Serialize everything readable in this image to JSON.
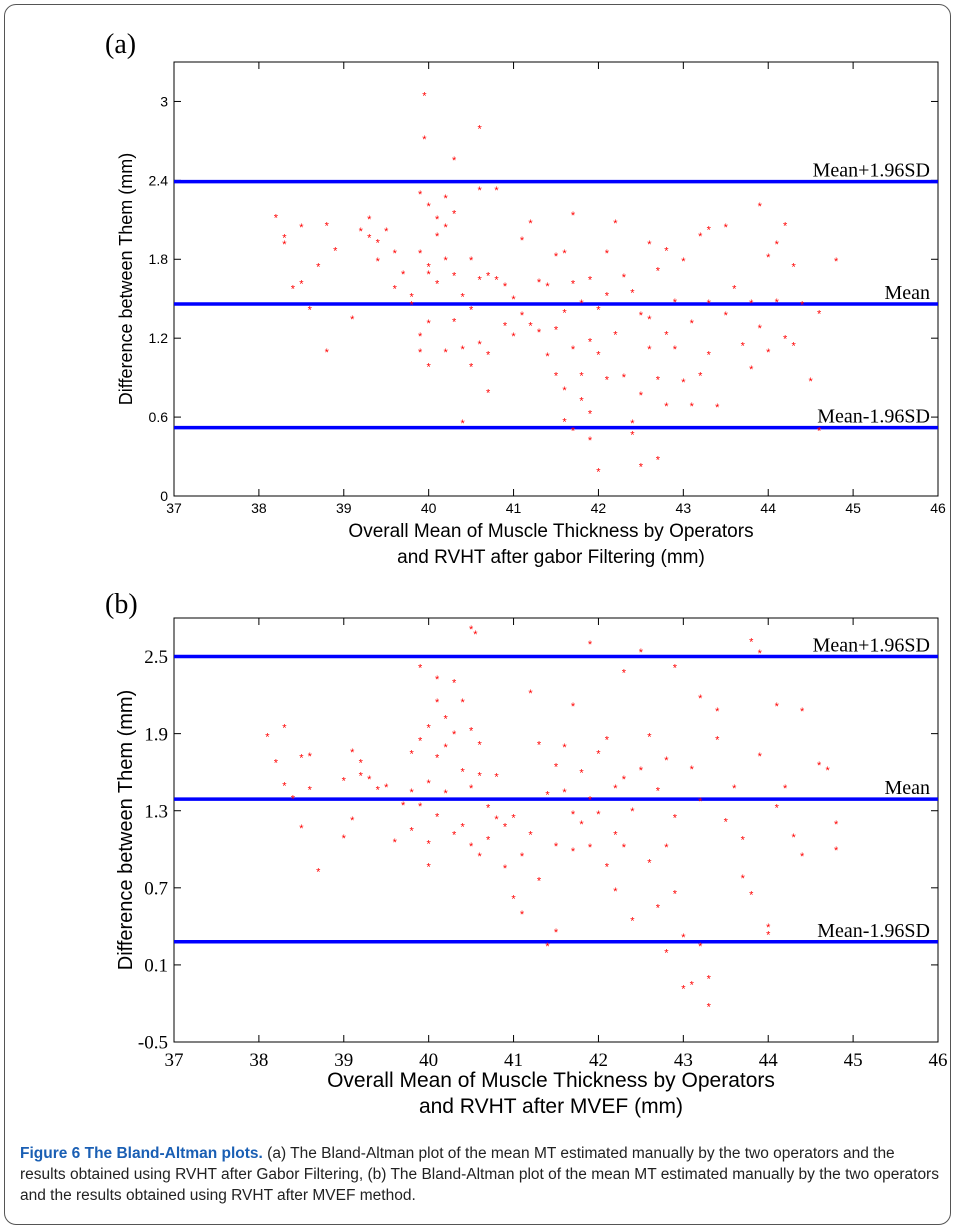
{
  "caption": {
    "label": "Figure 6 The Bland-Altman plots.",
    "text": "(a) The Bland-Altman plot of the mean MT estimated manually by the two operators and the results obtained using RVHT after Gabor Filtering, (b) The Bland-Altman plot of the mean MT estimated manually by the two operators and the results obtained using RVHT after MVEF method."
  },
  "chart_data": [
    {
      "type": "scatter",
      "panel_label": "(a)",
      "xlabel": [
        "Overall Mean of Muscle Thickness by  Operators",
        "and RVHT after gabor Filtering (mm)"
      ],
      "ylabel": "Difference between Them (mm)",
      "xlim": [
        37,
        46
      ],
      "ylim": [
        0,
        3.3
      ],
      "xticks": [
        37,
        38,
        39,
        40,
        41,
        42,
        43,
        44,
        45,
        46
      ],
      "yticks": [
        0,
        0.6,
        1.2,
        1.8,
        2.4,
        3
      ],
      "reference_lines": [
        {
          "name": "Mean+1.96SD",
          "y": 2.39
        },
        {
          "name": "Mean",
          "y": 1.46
        },
        {
          "name": "Mean-1.96SD",
          "y": 0.52
        }
      ],
      "marker_color": "#ff0000",
      "line_color": "#0000ff",
      "points": [
        [
          38.2,
          2.12
        ],
        [
          38.3,
          1.97
        ],
        [
          38.3,
          1.92
        ],
        [
          38.4,
          1.58
        ],
        [
          38.5,
          2.05
        ],
        [
          38.5,
          1.62
        ],
        [
          38.6,
          1.42
        ],
        [
          38.7,
          1.75
        ],
        [
          38.8,
          2.06
        ],
        [
          38.8,
          1.1
        ],
        [
          38.9,
          1.87
        ],
        [
          39.1,
          1.35
        ],
        [
          39.2,
          2.02
        ],
        [
          39.3,
          2.11
        ],
        [
          39.3,
          1.97
        ],
        [
          39.4,
          1.79
        ],
        [
          39.4,
          1.93
        ],
        [
          39.5,
          2.02
        ],
        [
          39.6,
          1.85
        ],
        [
          39.6,
          1.58
        ],
        [
          39.7,
          1.69
        ],
        [
          39.8,
          1.52
        ],
        [
          39.8,
          1.46
        ],
        [
          39.9,
          2.3
        ],
        [
          39.9,
          1.85
        ],
        [
          39.9,
          1.22
        ],
        [
          39.9,
          1.1
        ],
        [
          40.0,
          2.21
        ],
        [
          40.0,
          1.75
        ],
        [
          40.0,
          1.69
        ],
        [
          40.0,
          1.32
        ],
        [
          40.0,
          0.99
        ],
        [
          40.1,
          2.11
        ],
        [
          40.1,
          1.98
        ],
        [
          40.1,
          1.62
        ],
        [
          40.2,
          2.27
        ],
        [
          40.2,
          2.05
        ],
        [
          40.2,
          1.8
        ],
        [
          40.2,
          1.1
        ],
        [
          40.3,
          2.15
        ],
        [
          40.3,
          1.68
        ],
        [
          40.3,
          1.33
        ],
        [
          40.4,
          1.52
        ],
        [
          40.4,
          1.12
        ],
        [
          40.4,
          0.56
        ],
        [
          40.5,
          1.8
        ],
        [
          40.5,
          1.42
        ],
        [
          40.5,
          0.99
        ],
        [
          40.6,
          2.33
        ],
        [
          40.6,
          1.65
        ],
        [
          40.6,
          1.16
        ],
        [
          40.7,
          1.68
        ],
        [
          40.7,
          1.08
        ],
        [
          40.7,
          0.79
        ],
        [
          40.8,
          2.33
        ],
        [
          40.8,
          1.65
        ],
        [
          40.9,
          1.6
        ],
        [
          40.9,
          1.3
        ],
        [
          41.0,
          1.5
        ],
        [
          41.0,
          1.22
        ],
        [
          41.1,
          1.95
        ],
        [
          41.1,
          1.38
        ],
        [
          41.2,
          2.08
        ],
        [
          41.2,
          1.3
        ],
        [
          41.3,
          1.63
        ],
        [
          41.3,
          1.25
        ],
        [
          41.4,
          1.6
        ],
        [
          41.4,
          1.07
        ],
        [
          41.5,
          1.83
        ],
        [
          41.5,
          1.27
        ],
        [
          41.5,
          0.92
        ],
        [
          41.6,
          1.85
        ],
        [
          41.6,
          1.4
        ],
        [
          41.6,
          0.81
        ],
        [
          41.6,
          0.57
        ],
        [
          41.7,
          2.14
        ],
        [
          41.7,
          1.62
        ],
        [
          41.7,
          1.12
        ],
        [
          41.7,
          0.5
        ],
        [
          41.8,
          1.47
        ],
        [
          41.8,
          0.92
        ],
        [
          41.8,
          0.73
        ],
        [
          41.9,
          1.65
        ],
        [
          41.9,
          1.18
        ],
        [
          41.9,
          0.63
        ],
        [
          41.9,
          0.43
        ],
        [
          42.0,
          1.42
        ],
        [
          42.0,
          1.08
        ],
        [
          42.0,
          0.19
        ],
        [
          42.1,
          1.85
        ],
        [
          42.1,
          1.53
        ],
        [
          42.1,
          0.89
        ],
        [
          42.2,
          2.08
        ],
        [
          42.2,
          1.23
        ],
        [
          42.3,
          1.67
        ],
        [
          42.3,
          0.91
        ],
        [
          42.4,
          1.55
        ],
        [
          42.4,
          0.56
        ],
        [
          42.4,
          0.47
        ],
        [
          42.5,
          1.38
        ],
        [
          42.5,
          0.77
        ],
        [
          42.5,
          0.23
        ],
        [
          42.6,
          1.92
        ],
        [
          42.6,
          1.35
        ],
        [
          42.6,
          1.12
        ],
        [
          42.7,
          1.72
        ],
        [
          42.7,
          0.89
        ],
        [
          42.7,
          0.28
        ],
        [
          42.8,
          1.87
        ],
        [
          42.8,
          1.23
        ],
        [
          42.8,
          0.69
        ],
        [
          42.9,
          1.48
        ],
        [
          42.9,
          1.12
        ],
        [
          43.0,
          1.79
        ],
        [
          43.0,
          0.87
        ],
        [
          43.1,
          1.32
        ],
        [
          43.1,
          0.69
        ],
        [
          43.2,
          1.98
        ],
        [
          43.2,
          0.92
        ],
        [
          43.3,
          2.03
        ],
        [
          43.3,
          1.47
        ],
        [
          43.3,
          1.08
        ],
        [
          43.4,
          0.68
        ],
        [
          43.5,
          2.05
        ],
        [
          43.5,
          1.38
        ],
        [
          43.6,
          1.58
        ],
        [
          43.7,
          1.15
        ],
        [
          43.8,
          1.47
        ],
        [
          43.8,
          0.97
        ],
        [
          43.9,
          2.21
        ],
        [
          43.9,
          1.28
        ],
        [
          44.0,
          1.82
        ],
        [
          44.0,
          1.1
        ],
        [
          44.1,
          1.92
        ],
        [
          44.1,
          1.48
        ],
        [
          44.2,
          2.06
        ],
        [
          44.2,
          1.2
        ],
        [
          44.3,
          1.75
        ],
        [
          44.3,
          1.15
        ],
        [
          44.4,
          1.46
        ],
        [
          44.5,
          0.88
        ],
        [
          44.6,
          1.39
        ],
        [
          44.6,
          0.5
        ],
        [
          44.8,
          1.79
        ],
        [
          39.95,
          3.05
        ],
        [
          39.95,
          2.72
        ],
        [
          40.3,
          2.56
        ],
        [
          40.6,
          2.8
        ]
      ]
    },
    {
      "type": "scatter",
      "panel_label": "(b)",
      "xlabel": [
        "Overall Mean of Muscle Thickness by  Operators",
        "and RVHT after MVEF (mm)"
      ],
      "ylabel": "Difference between Them (mm)",
      "xlim": [
        37,
        46
      ],
      "ylim": [
        -0.5,
        2.8
      ],
      "xticks": [
        37,
        38,
        39,
        40,
        41,
        42,
        43,
        44,
        45,
        46
      ],
      "yticks": [
        -0.5,
        0.1,
        0.7,
        1.3,
        1.9,
        2.5
      ],
      "reference_lines": [
        {
          "name": "Mean+1.96SD",
          "y": 2.5
        },
        {
          "name": "Mean",
          "y": 1.39
        },
        {
          "name": "Mean-1.96SD",
          "y": 0.28
        }
      ],
      "marker_color": "#ff0000",
      "line_color": "#0000ff",
      "points": [
        [
          38.1,
          1.88
        ],
        [
          38.2,
          1.68
        ],
        [
          38.3,
          1.95
        ],
        [
          38.3,
          1.5
        ],
        [
          38.4,
          1.4
        ],
        [
          38.5,
          1.72
        ],
        [
          38.5,
          1.17
        ],
        [
          38.6,
          1.73
        ],
        [
          38.6,
          1.47
        ],
        [
          38.7,
          0.83
        ],
        [
          39.0,
          1.54
        ],
        [
          39.0,
          1.09
        ],
        [
          39.1,
          1.76
        ],
        [
          39.1,
          1.23
        ],
        [
          39.2,
          1.68
        ],
        [
          39.2,
          1.58
        ],
        [
          39.3,
          1.55
        ],
        [
          39.4,
          1.47
        ],
        [
          39.5,
          1.49
        ],
        [
          39.6,
          1.06
        ],
        [
          39.7,
          1.35
        ],
        [
          39.8,
          1.75
        ],
        [
          39.8,
          1.45
        ],
        [
          39.8,
          1.15
        ],
        [
          39.9,
          2.42
        ],
        [
          39.9,
          1.85
        ],
        [
          39.9,
          1.34
        ],
        [
          40.0,
          1.95
        ],
        [
          40.0,
          1.52
        ],
        [
          40.0,
          1.05
        ],
        [
          40.0,
          0.87
        ],
        [
          40.1,
          2.33
        ],
        [
          40.1,
          2.15
        ],
        [
          40.1,
          1.72
        ],
        [
          40.1,
          1.26
        ],
        [
          40.2,
          2.02
        ],
        [
          40.2,
          1.8
        ],
        [
          40.2,
          1.44
        ],
        [
          40.3,
          2.3
        ],
        [
          40.3,
          1.9
        ],
        [
          40.3,
          1.12
        ],
        [
          40.4,
          2.15
        ],
        [
          40.4,
          1.61
        ],
        [
          40.4,
          1.18
        ],
        [
          40.5,
          1.93
        ],
        [
          40.5,
          1.48
        ],
        [
          40.5,
          1.03
        ],
        [
          40.6,
          1.82
        ],
        [
          40.6,
          1.58
        ],
        [
          40.6,
          0.95
        ],
        [
          40.7,
          1.33
        ],
        [
          40.7,
          1.08
        ],
        [
          40.8,
          1.57
        ],
        [
          40.8,
          1.24
        ],
        [
          40.9,
          1.18
        ],
        [
          40.9,
          0.86
        ],
        [
          41.0,
          1.25
        ],
        [
          41.0,
          0.62
        ],
        [
          41.1,
          0.95
        ],
        [
          41.1,
          0.5
        ],
        [
          41.2,
          2.22
        ],
        [
          41.2,
          1.12
        ],
        [
          41.3,
          1.82
        ],
        [
          41.3,
          0.76
        ],
        [
          41.4,
          1.43
        ],
        [
          41.4,
          0.25
        ],
        [
          41.5,
          1.65
        ],
        [
          41.5,
          1.03
        ],
        [
          41.5,
          0.36
        ],
        [
          41.6,
          1.8
        ],
        [
          41.6,
          1.45
        ],
        [
          41.7,
          2.12
        ],
        [
          41.7,
          1.28
        ],
        [
          41.7,
          0.99
        ],
        [
          41.8,
          1.6
        ],
        [
          41.8,
          1.2
        ],
        [
          41.9,
          2.6
        ],
        [
          41.9,
          1.39
        ],
        [
          41.9,
          1.02
        ],
        [
          42.0,
          1.75
        ],
        [
          42.0,
          1.28
        ],
        [
          42.1,
          1.86
        ],
        [
          42.1,
          0.87
        ],
        [
          42.2,
          1.48
        ],
        [
          42.2,
          1.12
        ],
        [
          42.2,
          0.68
        ],
        [
          42.3,
          2.38
        ],
        [
          42.3,
          1.55
        ],
        [
          42.3,
          1.02
        ],
        [
          42.4,
          1.3
        ],
        [
          42.4,
          0.45
        ],
        [
          42.5,
          2.54
        ],
        [
          42.5,
          1.62
        ],
        [
          42.6,
          1.88
        ],
        [
          42.6,
          0.9
        ],
        [
          42.7,
          1.46
        ],
        [
          42.7,
          0.55
        ],
        [
          42.8,
          1.7
        ],
        [
          42.8,
          1.02
        ],
        [
          42.8,
          0.2
        ],
        [
          42.9,
          2.42
        ],
        [
          42.9,
          1.25
        ],
        [
          42.9,
          0.66
        ],
        [
          43.0,
          0.32
        ],
        [
          43.0,
          -0.08
        ],
        [
          43.1,
          1.63
        ],
        [
          43.1,
          -0.05
        ],
        [
          43.2,
          2.18
        ],
        [
          43.2,
          1.38
        ],
        [
          43.2,
          0.25
        ],
        [
          43.3,
          0.0
        ],
        [
          43.3,
          -0.22
        ],
        [
          43.4,
          2.08
        ],
        [
          43.4,
          1.86
        ],
        [
          43.5,
          1.22
        ],
        [
          43.6,
          1.48
        ],
        [
          43.7,
          1.08
        ],
        [
          43.7,
          0.78
        ],
        [
          43.8,
          2.62
        ],
        [
          43.8,
          0.65
        ],
        [
          43.9,
          1.73
        ],
        [
          44.0,
          0.4
        ],
        [
          44.0,
          0.34
        ],
        [
          44.1,
          2.12
        ],
        [
          44.1,
          1.33
        ],
        [
          44.2,
          1.48
        ],
        [
          44.3,
          1.1
        ],
        [
          44.4,
          2.08
        ],
        [
          44.4,
          0.95
        ],
        [
          44.6,
          1.66
        ],
        [
          44.7,
          1.62
        ],
        [
          44.8,
          1.2
        ],
        [
          44.8,
          1.0
        ],
        [
          40.5,
          2.72
        ],
        [
          40.55,
          2.68
        ],
        [
          43.9,
          2.53
        ]
      ]
    }
  ]
}
